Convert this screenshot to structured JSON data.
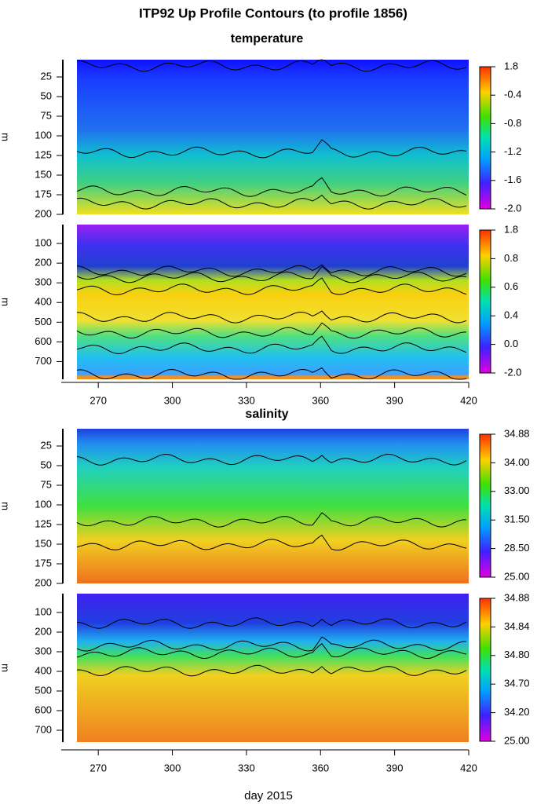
{
  "title": "ITP92 Up Profile Contours (to profile 1856)",
  "xlabel": "day 2015",
  "chart_data": [
    {
      "type": "heatmap",
      "title": "temperature",
      "ylabel": "m",
      "ylim": [
        3,
        200
      ],
      "yticks": [
        25,
        50,
        75,
        100,
        125,
        150,
        175,
        200
      ],
      "colorbar_labels": [
        1.8,
        -0.4,
        -0.8,
        -1.2,
        -1.6,
        {
          "value": -2,
          "label": "-2.0"
        }
      ]
    },
    {
      "type": "heatmap",
      "ylabel": "m",
      "ylim": [
        4,
        790
      ],
      "yticks": [
        100,
        200,
        300,
        400,
        500,
        600,
        700
      ],
      "xlim": [
        255,
        420
      ],
      "xticks": [
        270,
        300,
        330,
        360,
        390,
        420
      ],
      "colorbar_labels": [
        1.8,
        0.8,
        0.6,
        0.4,
        {
          "value": 0,
          "label": "0.0"
        },
        {
          "value": -2,
          "label": "-2.0"
        }
      ]
    },
    {
      "type": "heatmap",
      "title": "salinity",
      "ylabel": "m",
      "ylim": [
        3,
        200
      ],
      "yticks": [
        25,
        50,
        75,
        100,
        125,
        150,
        175,
        200
      ],
      "colorbar_labels": [
        34.88,
        {
          "value": 34,
          "label": "34.00"
        },
        {
          "value": 33,
          "label": "33.00"
        },
        {
          "value": 31.5,
          "label": "31.50"
        },
        {
          "value": 28.5,
          "label": "28.50"
        },
        {
          "value": 25,
          "label": "25.00"
        }
      ]
    },
    {
      "type": "heatmap",
      "ylabel": "m",
      "ylim": [
        4,
        760
      ],
      "yticks": [
        100,
        200,
        300,
        400,
        500,
        600,
        700
      ],
      "xlim": [
        255,
        420
      ],
      "xticks": [
        270,
        300,
        330,
        360,
        390,
        420
      ],
      "colorbar_labels": [
        34.88,
        34.84,
        {
          "value": 34.8,
          "label": "34.80"
        },
        {
          "value": 34.7,
          "label": "34.70"
        },
        {
          "value": 34.2,
          "label": "34.20"
        },
        {
          "value": 25,
          "label": "25.00"
        }
      ]
    }
  ]
}
